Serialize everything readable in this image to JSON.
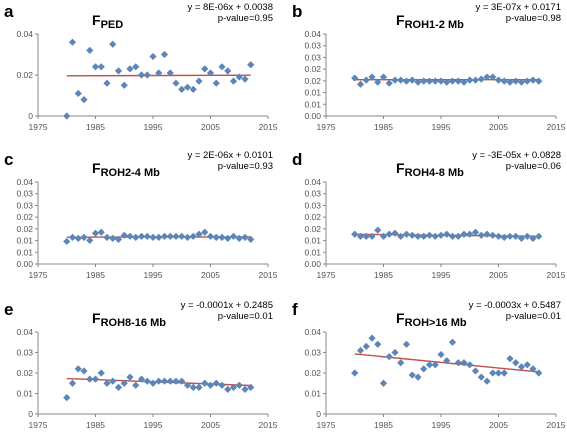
{
  "chart_data": [
    {
      "type": "scatter",
      "panel_label": "a",
      "title_main": "F",
      "title_sub": "PED",
      "equation": "y = 8E-06x + 0.0038",
      "pvalue": "p-value=0.95",
      "xlim": [
        1975,
        2015
      ],
      "ylim": [
        0,
        0.04
      ],
      "xticks": [
        "1975",
        "1985",
        "1995",
        "2005",
        "2015"
      ],
      "yticks": [
        "0",
        "0.02",
        "0.04"
      ],
      "x": [
        1980,
        1981,
        1982,
        1983,
        1984,
        1985,
        1986,
        1987,
        1988,
        1989,
        1990,
        1991,
        1992,
        1993,
        1994,
        1995,
        1996,
        1997,
        1998,
        1999,
        2000,
        2001,
        2002,
        2003,
        2004,
        2005,
        2006,
        2007,
        2008,
        2009,
        2010,
        2011,
        2012
      ],
      "y": [
        0.0,
        0.036,
        0.011,
        0.008,
        0.032,
        0.024,
        0.024,
        0.016,
        0.035,
        0.022,
        0.015,
        0.023,
        0.024,
        0.02,
        0.02,
        0.029,
        0.021,
        0.03,
        0.021,
        0.016,
        0.013,
        0.014,
        0.013,
        0.017,
        0.023,
        0.021,
        0.016,
        0.024,
        0.022,
        0.017,
        0.019,
        0.018,
        0.025
      ],
      "trend": [
        [
          1980,
          0.0196
        ],
        [
          2012,
          0.0199
        ]
      ],
      "grid": false,
      "marker_color": "#5b86b7",
      "trend_color": "#c0504d"
    },
    {
      "type": "scatter",
      "panel_label": "b",
      "title_main": "F",
      "title_sub": "ROH1-2 Mb",
      "equation": "y = 3E-07x + 0.0171",
      "pvalue": "p-value=0.98",
      "xlim": [
        1975,
        2015
      ],
      "ylim": [
        0,
        0.04
      ],
      "xticks": [
        "1975",
        "1985",
        "1995",
        "2005",
        "2015"
      ],
      "yticks": [
        "0.00",
        "0.01",
        "0.01",
        "0.02",
        "0.02",
        "0.03",
        "0.03",
        "0.04"
      ],
      "x": [
        1980,
        1981,
        1982,
        1983,
        1984,
        1985,
        1986,
        1987,
        1988,
        1989,
        1990,
        1991,
        1992,
        1993,
        1994,
        1995,
        1996,
        1997,
        1998,
        1999,
        2000,
        2001,
        2002,
        2003,
        2004,
        2005,
        2006,
        2007,
        2008,
        2009,
        2010,
        2011,
        2012
      ],
      "y": [
        0.0185,
        0.0155,
        0.0175,
        0.019,
        0.0165,
        0.019,
        0.016,
        0.0175,
        0.0175,
        0.017,
        0.0175,
        0.0165,
        0.017,
        0.017,
        0.017,
        0.017,
        0.0165,
        0.017,
        0.017,
        0.0165,
        0.0175,
        0.0175,
        0.018,
        0.019,
        0.019,
        0.0175,
        0.017,
        0.0165,
        0.017,
        0.0165,
        0.017,
        0.0175,
        0.017
      ],
      "trend": [
        [
          1980,
          0.0177
        ],
        [
          2012,
          0.0177
        ]
      ],
      "grid": false,
      "marker_color": "#5b86b7",
      "trend_color": "#c0504d"
    },
    {
      "type": "scatter",
      "panel_label": "c",
      "title_main": "F",
      "title_sub": "ROH2-4 Mb",
      "equation": "y = 2E-06x + 0.0101",
      "pvalue": "p-value=0.93",
      "xlim": [
        1975,
        2015
      ],
      "ylim": [
        0,
        0.04
      ],
      "xticks": [
        "1975",
        "1985",
        "1995",
        "2005",
        "2015"
      ],
      "yticks": [
        "0.00",
        "0.01",
        "0.01",
        "0.02",
        "0.02",
        "0.03",
        "0.03",
        "0.04"
      ],
      "x": [
        1980,
        1981,
        1982,
        1983,
        1984,
        1985,
        1986,
        1987,
        1988,
        1989,
        1990,
        1991,
        1992,
        1993,
        1994,
        1995,
        1996,
        1997,
        1998,
        1999,
        2000,
        2001,
        2002,
        2003,
        2004,
        2005,
        2006,
        2007,
        2008,
        2009,
        2010,
        2011,
        2012
      ],
      "y": [
        0.011,
        0.013,
        0.0125,
        0.013,
        0.0115,
        0.015,
        0.0155,
        0.013,
        0.0125,
        0.012,
        0.014,
        0.0135,
        0.013,
        0.0135,
        0.0135,
        0.013,
        0.013,
        0.0135,
        0.0135,
        0.0135,
        0.0135,
        0.013,
        0.0135,
        0.0145,
        0.0155,
        0.0135,
        0.013,
        0.013,
        0.0125,
        0.0135,
        0.0125,
        0.013,
        0.012
      ],
      "trend": [
        [
          1980,
          0.0131
        ],
        [
          2012,
          0.0132
        ]
      ],
      "grid": false,
      "marker_color": "#5b86b7",
      "trend_color": "#c0504d"
    },
    {
      "type": "scatter",
      "panel_label": "d",
      "title_main": "F",
      "title_sub": "ROH4-8 Mb",
      "equation": "y = -3E-05x + 0.0828",
      "pvalue": "p-value=0.06",
      "xlim": [
        1975,
        2015
      ],
      "ylim": [
        0,
        0.04
      ],
      "xticks": [
        "1975",
        "1985",
        "1995",
        "2005",
        "2015"
      ],
      "yticks": [
        "0.00",
        "0.01",
        "0.01",
        "0.02",
        "0.02",
        "0.03",
        "0.03",
        "0.04"
      ],
      "x": [
        1980,
        1981,
        1982,
        1983,
        1984,
        1985,
        1986,
        1987,
        1988,
        1989,
        1990,
        1991,
        1992,
        1993,
        1994,
        1995,
        1996,
        1997,
        1998,
        1999,
        2000,
        2001,
        2002,
        2003,
        2004,
        2005,
        2006,
        2007,
        2008,
        2009,
        2010,
        2011,
        2012
      ],
      "y": [
        0.0145,
        0.0135,
        0.0135,
        0.0135,
        0.0165,
        0.0135,
        0.0145,
        0.015,
        0.0135,
        0.0145,
        0.014,
        0.0135,
        0.0135,
        0.014,
        0.0135,
        0.014,
        0.0145,
        0.0135,
        0.0135,
        0.0145,
        0.0145,
        0.0155,
        0.014,
        0.0145,
        0.014,
        0.0135,
        0.013,
        0.0135,
        0.0135,
        0.0125,
        0.0135,
        0.0125,
        0.0135
      ],
      "trend": [
        [
          1980,
          0.0145
        ],
        [
          2012,
          0.0135
        ]
      ],
      "grid": false,
      "marker_color": "#5b86b7",
      "trend_color": "#c0504d"
    },
    {
      "type": "scatter",
      "panel_label": "e",
      "title_main": "F",
      "title_sub": "ROH8-16 Mb",
      "equation": "y = -0.0001x + 0.2485",
      "pvalue": "p-value=0.01",
      "xlim": [
        1975,
        2015
      ],
      "ylim": [
        0,
        0.04
      ],
      "xticks": [
        "1975",
        "1985",
        "1995",
        "2005",
        "2015"
      ],
      "yticks": [
        "0",
        "0.01",
        "0.02",
        "0.03",
        "0.04"
      ],
      "x": [
        1980,
        1981,
        1982,
        1983,
        1984,
        1985,
        1986,
        1987,
        1988,
        1989,
        1990,
        1991,
        1992,
        1993,
        1994,
        1995,
        1996,
        1997,
        1998,
        1999,
        2000,
        2001,
        2002,
        2003,
        2004,
        2005,
        2006,
        2007,
        2008,
        2009,
        2010,
        2011,
        2012
      ],
      "y": [
        0.008,
        0.015,
        0.022,
        0.021,
        0.017,
        0.017,
        0.02,
        0.015,
        0.016,
        0.013,
        0.015,
        0.018,
        0.014,
        0.017,
        0.016,
        0.015,
        0.016,
        0.016,
        0.016,
        0.016,
        0.016,
        0.014,
        0.013,
        0.013,
        0.015,
        0.014,
        0.015,
        0.014,
        0.012,
        0.013,
        0.014,
        0.012,
        0.013
      ],
      "trend": [
        [
          1980,
          0.0173
        ],
        [
          2012,
          0.0139
        ]
      ],
      "grid": false,
      "marker_color": "#5b86b7",
      "trend_color": "#c0504d"
    },
    {
      "type": "scatter",
      "panel_label": "f",
      "title_main": "F",
      "title_sub": "ROH>16 Mb",
      "equation": "y = -0.0003x + 0.5487",
      "pvalue": "p-value=0.01",
      "xlim": [
        1975,
        2015
      ],
      "ylim": [
        0,
        0.04
      ],
      "xticks": [
        "1975",
        "1985",
        "1995",
        "2005",
        "2015"
      ],
      "yticks": [
        "0",
        "0.01",
        "0.02",
        "0.03",
        "0.04"
      ],
      "x": [
        1980,
        1981,
        1982,
        1983,
        1984,
        1985,
        1986,
        1987,
        1988,
        1989,
        1990,
        1991,
        1992,
        1993,
        1994,
        1995,
        1996,
        1997,
        1998,
        1999,
        2000,
        2001,
        2002,
        2003,
        2004,
        2005,
        2006,
        2007,
        2008,
        2009,
        2010,
        2011,
        2012
      ],
      "y": [
        0.02,
        0.031,
        0.033,
        0.037,
        0.034,
        0.015,
        0.028,
        0.03,
        0.025,
        0.034,
        0.019,
        0.018,
        0.022,
        0.024,
        0.024,
        0.029,
        0.026,
        0.035,
        0.025,
        0.025,
        0.024,
        0.021,
        0.018,
        0.016,
        0.02,
        0.02,
        0.02,
        0.027,
        0.025,
        0.023,
        0.024,
        0.022,
        0.02
      ],
      "trend": [
        [
          1980,
          0.0293
        ],
        [
          2012,
          0.0205
        ]
      ],
      "grid": false,
      "marker_color": "#5b86b7",
      "trend_color": "#c0504d"
    }
  ]
}
